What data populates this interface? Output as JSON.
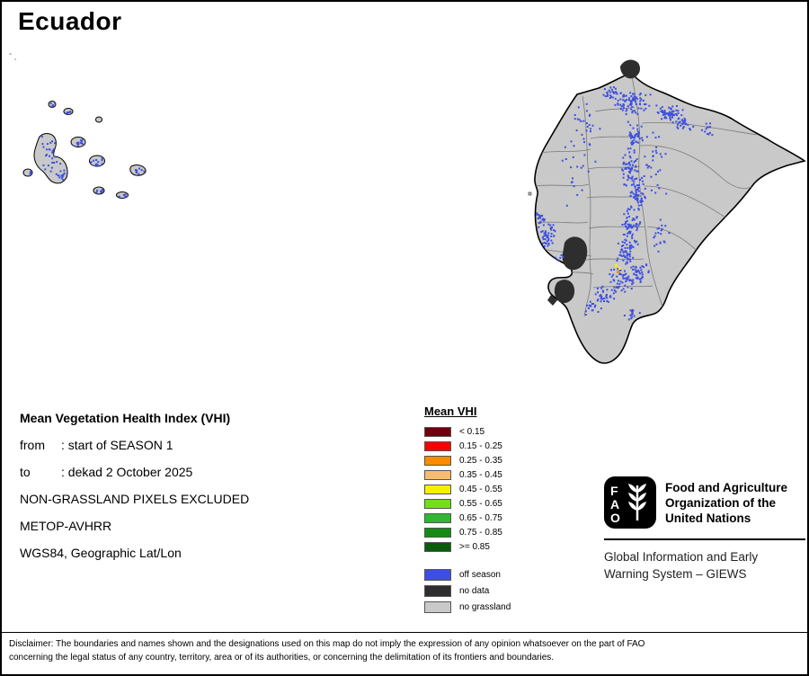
{
  "title": "Ecuador",
  "info": {
    "heading": "Mean Vegetation Health Index (VHI)",
    "lines": [
      {
        "label": "from",
        "value": ": start of SEASON 1"
      },
      {
        "label": "to",
        "value": ": dekad 2 October 2025"
      },
      {
        "label": "",
        "value": "NON-GRASSLAND PIXELS EXCLUDED"
      },
      {
        "label": "",
        "value": "METOP-AVHRR"
      },
      {
        "label": "",
        "value": "WGS84, Geographic Lat/Lon"
      }
    ]
  },
  "legend": {
    "title": "Mean VHI",
    "classes": [
      {
        "label": "< 0.15",
        "color": "#70000d"
      },
      {
        "label": "0.15 - 0.25",
        "color": "#f80000"
      },
      {
        "label": "0.25 - 0.35",
        "color": "#f88c00"
      },
      {
        "label": "0.35 - 0.45",
        "color": "#f7bd6e"
      },
      {
        "label": "0.45 - 0.55",
        "color": "#f8f000"
      },
      {
        "label": "0.55 - 0.65",
        "color": "#71e019"
      },
      {
        "label": "0.65 - 0.75",
        "color": "#2fb82f"
      },
      {
        "label": "0.75 - 0.85",
        "color": "#168a16"
      },
      {
        "label": ">= 0.85",
        "color": "#0a5c0a"
      }
    ],
    "extras": [
      {
        "label": "off season",
        "color": "#3d4fe0"
      },
      {
        "label": "no data",
        "color": "#2e2e2e"
      },
      {
        "label": "no grassland",
        "color": "#c9c9c9"
      }
    ]
  },
  "footer": {
    "logo_letters": [
      "F",
      "A",
      "O"
    ],
    "org_lines": [
      "Food and Agriculture",
      "Organization of the",
      "United Nations"
    ],
    "giews_lines": [
      "Global Information and Early",
      "Warning System – GIEWS"
    ]
  },
  "disclaimer": {
    "line1": "Disclaimer: The boundaries and names shown and the designations used on this map do not imply the expression of any opinion whatsoever on the part of FAO",
    "line2": "concerning the legal status of any country, territory, area or of its authorities, or concerning the delimitation of its frontiers and boundaries."
  }
}
